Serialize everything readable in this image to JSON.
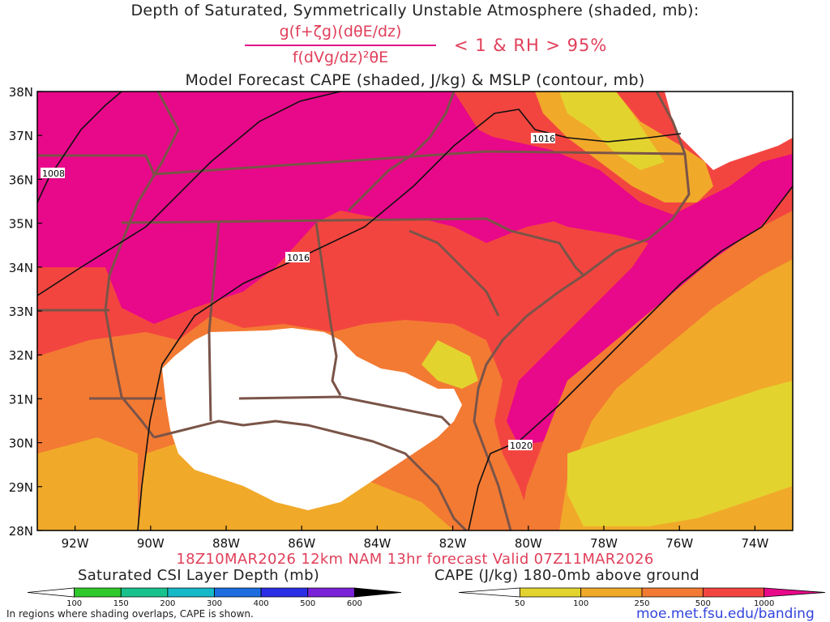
{
  "header": {
    "title_line1": "Depth of Saturated, Symmetrically Unstable Atmosphere (shaded, mb):",
    "formula_numerator": "g(f+ζg)(dθE/dz)",
    "formula_denominator": "f(dVg/dz)²θE",
    "condition": "< 1 & RH > 95%",
    "title_line3": "Model Forecast CAPE (shaded, J/kg) & MSLP (contour, mb)"
  },
  "map": {
    "lat_labels": [
      "38N",
      "37N",
      "36N",
      "35N",
      "34N",
      "33N",
      "32N",
      "31N",
      "30N",
      "29N",
      "28N"
    ],
    "lon_labels": [
      "92W",
      "90W",
      "88W",
      "86W",
      "84W",
      "82W",
      "80W",
      "78W",
      "76W",
      "74W"
    ],
    "contour_labels": [
      "1008",
      "1016",
      "1016",
      "1020"
    ],
    "colors": {
      "cape_50": "#e3d32e",
      "cape_100": "#f1a92a",
      "cape_250": "#f37a33",
      "cape_500": "#f34540",
      "cape_1000": "#e8088a",
      "borders": "#7a5448",
      "isobars": "#111111"
    }
  },
  "footer": {
    "valid_line": "18Z10MAR2026 12km NAM 13hr forecast Valid 07Z11MAR2026",
    "csi_colorbar_title": "Saturated CSI Layer Depth (mb)",
    "csi_ticks": [
      "100",
      "150",
      "200",
      "300",
      "400",
      "500",
      "600"
    ],
    "csi_colors": [
      "#ffffff",
      "#2fc92b",
      "#19c28c",
      "#17b8c8",
      "#1d6de0",
      "#2a2ee6",
      "#7a22d8",
      "#000000"
    ],
    "cape_colorbar_title": "CAPE (J/kg) 180-0mb above ground",
    "cape_ticks": [
      "50",
      "100",
      "250",
      "500",
      "1000"
    ],
    "cape_colors": [
      "#ffffff",
      "#e3d32e",
      "#f1a92a",
      "#f37a33",
      "#f34540",
      "#e8088a"
    ],
    "note": "In regions where shading overlaps, CAPE is shown.",
    "url": "moe.met.fsu.edu/banding"
  }
}
